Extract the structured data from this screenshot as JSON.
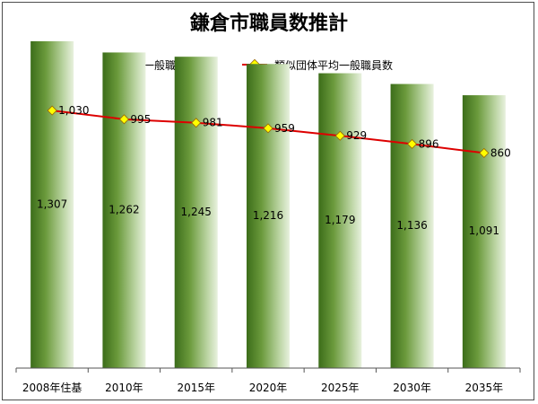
{
  "chart_data": {
    "type": "bar",
    "title": "鎌倉市職員数推計",
    "categories": [
      "2008年住基",
      "2010年",
      "2015年",
      "2020年",
      "2025年",
      "2030年",
      "2035年"
    ],
    "series": [
      {
        "name": "一般職員数",
        "type": "bar",
        "color": "#5e8a2e",
        "values": [
          1307,
          1262,
          1245,
          1216,
          1179,
          1136,
          1091
        ]
      },
      {
        "name": "類似団体平均一般職員数",
        "type": "line",
        "color": "#dd0000",
        "marker_color": "#ffff00",
        "values": [
          1030,
          995,
          981,
          959,
          929,
          896,
          860
        ]
      }
    ],
    "ylim": [
      0,
      1400
    ],
    "grid": false,
    "legend": "top",
    "value_labels": {
      "bars": [
        "1,307",
        "1,262",
        "1,245",
        "1,216",
        "1,179",
        "1,136",
        "1,091"
      ],
      "line": [
        "1,030",
        "995",
        "981",
        "959",
        "929",
        "896",
        "860"
      ]
    }
  }
}
